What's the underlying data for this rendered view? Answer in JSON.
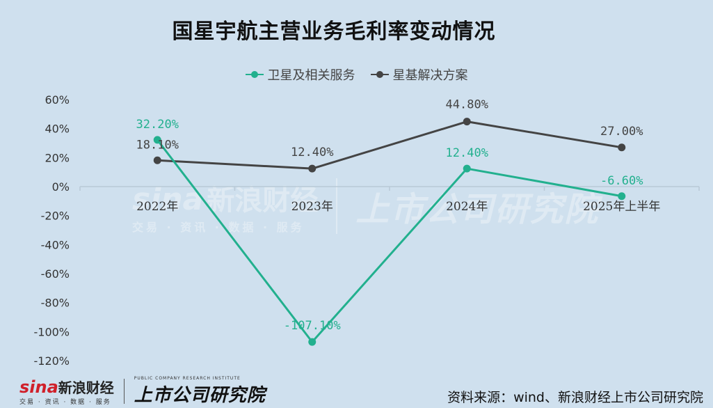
{
  "title": "国星宇航主营业务毛利率变动情况",
  "source": "资料来源：wind、新浪财经上市公司研究院",
  "branding": {
    "sina_en": "sina",
    "sina_cn": "新浪财经",
    "sina_sub": "交易 · 资讯 · 数据 · 服务",
    "institute_cn": "上市公司研究院",
    "institute_en": "PUBLIC COMPANY RESEARCH INSTITUTE"
  },
  "colors": {
    "background": "#cfe0ee",
    "series_teal": "#22b08e",
    "series_dark": "#444444",
    "zero_line": "#b9c9d6"
  },
  "chart_data": {
    "type": "line",
    "title": "国星宇航主营业务毛利率变动情况",
    "categories": [
      "2022年",
      "2023年",
      "2024年",
      "2025年上半年"
    ],
    "series": [
      {
        "name": "卫星及相关服务",
        "values": [
          32.2,
          -107.1,
          12.4,
          -6.6
        ],
        "labels": [
          "32.20%",
          "-107.10%",
          "12.40%",
          "-6.60%"
        ],
        "color": "#22b08e"
      },
      {
        "name": "星基解决方案",
        "values": [
          18.1,
          12.4,
          44.8,
          27.0
        ],
        "labels": [
          "18.10%",
          "12.40%",
          "44.80%",
          "27.00%"
        ],
        "color": "#444444"
      }
    ],
    "yticks": [
      "60%",
      "40%",
      "20%",
      "0%",
      "-20%",
      "-40%",
      "-60%",
      "-80%",
      "-100%",
      "-120%"
    ],
    "ytick_values": [
      60,
      40,
      20,
      0,
      -20,
      -40,
      -60,
      -80,
      -100,
      -120
    ],
    "ylim": [
      -120,
      60
    ],
    "xlabel": "",
    "ylabel": "",
    "legend_position": "top-center",
    "grid": false
  }
}
